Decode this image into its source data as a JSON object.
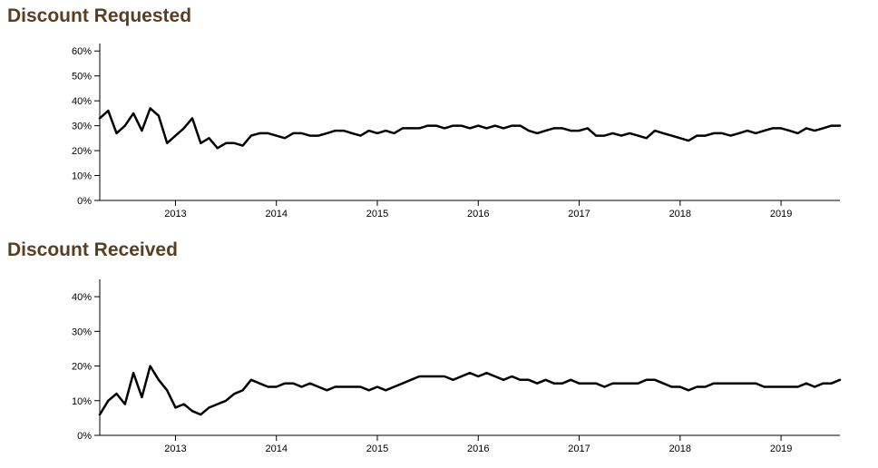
{
  "chart_data": [
    {
      "type": "line",
      "title": "Discount Requested",
      "xlabel": "",
      "ylabel": "",
      "x_ticks": [
        "2013",
        "2014",
        "2015",
        "2016",
        "2017",
        "2018",
        "2019"
      ],
      "y_ticks": [
        "0%",
        "10%",
        "20%",
        "30%",
        "40%",
        "50%",
        "60%"
      ],
      "xlim": [
        "2012-04",
        "2019-08"
      ],
      "ylim": [
        0,
        0.63
      ],
      "grid": false,
      "series": [
        {
          "x": [
            "2012-04",
            "2012-05",
            "2012-06",
            "2012-07",
            "2012-08",
            "2012-09",
            "2012-10",
            "2012-11",
            "2012-12",
            "2013-01",
            "2013-02",
            "2013-03",
            "2013-04",
            "2013-05",
            "2013-06",
            "2013-07",
            "2013-08",
            "2013-09",
            "2013-10",
            "2013-11",
            "2013-12",
            "2014-01",
            "2014-02",
            "2014-03",
            "2014-04",
            "2014-05",
            "2014-06",
            "2014-07",
            "2014-08",
            "2014-09",
            "2014-10",
            "2014-11",
            "2014-12",
            "2015-01",
            "2015-02",
            "2015-03",
            "2015-04",
            "2015-05",
            "2015-06",
            "2015-07",
            "2015-08",
            "2015-09",
            "2015-10",
            "2015-11",
            "2015-12",
            "2016-01",
            "2016-02",
            "2016-03",
            "2016-04",
            "2016-05",
            "2016-06",
            "2016-07",
            "2016-08",
            "2016-09",
            "2016-10",
            "2016-11",
            "2016-12",
            "2017-01",
            "2017-02",
            "2017-03",
            "2017-04",
            "2017-05",
            "2017-06",
            "2017-07",
            "2017-08",
            "2017-09",
            "2017-10",
            "2017-11",
            "2017-12",
            "2018-01",
            "2018-02",
            "2018-03",
            "2018-04",
            "2018-05",
            "2018-06",
            "2018-07",
            "2018-08",
            "2018-09",
            "2018-10",
            "2018-11",
            "2018-12",
            "2019-01",
            "2019-02",
            "2019-03",
            "2019-04",
            "2019-05",
            "2019-06",
            "2019-07",
            "2019-08"
          ],
          "values": [
            0.33,
            0.36,
            0.27,
            0.3,
            0.35,
            0.28,
            0.37,
            0.34,
            0.23,
            0.26,
            0.29,
            0.33,
            0.23,
            0.25,
            0.21,
            0.23,
            0.23,
            0.22,
            0.26,
            0.27,
            0.27,
            0.26,
            0.25,
            0.27,
            0.27,
            0.26,
            0.26,
            0.27,
            0.28,
            0.28,
            0.27,
            0.26,
            0.28,
            0.27,
            0.28,
            0.27,
            0.29,
            0.29,
            0.29,
            0.3,
            0.3,
            0.29,
            0.3,
            0.3,
            0.29,
            0.3,
            0.29,
            0.3,
            0.29,
            0.3,
            0.3,
            0.28,
            0.27,
            0.28,
            0.29,
            0.29,
            0.28,
            0.28,
            0.29,
            0.26,
            0.26,
            0.27,
            0.26,
            0.27,
            0.26,
            0.25,
            0.28,
            0.27,
            0.26,
            0.25,
            0.24,
            0.26,
            0.26,
            0.27,
            0.27,
            0.26,
            0.27,
            0.28,
            0.27,
            0.28,
            0.29,
            0.29,
            0.28,
            0.27,
            0.29,
            0.28,
            0.29,
            0.3,
            0.3
          ]
        }
      ]
    },
    {
      "type": "line",
      "title": "Discount Received",
      "xlabel": "",
      "ylabel": "",
      "x_ticks": [
        "2013",
        "2014",
        "2015",
        "2016",
        "2017",
        "2018",
        "2019"
      ],
      "y_ticks": [
        "0%",
        "10%",
        "20%",
        "30%",
        "40%"
      ],
      "xlim": [
        "2012-04",
        "2019-08"
      ],
      "ylim": [
        0,
        0.45
      ],
      "grid": false,
      "series": [
        {
          "x": [
            "2012-04",
            "2012-05",
            "2012-06",
            "2012-07",
            "2012-08",
            "2012-09",
            "2012-10",
            "2012-11",
            "2012-12",
            "2013-01",
            "2013-02",
            "2013-03",
            "2013-04",
            "2013-05",
            "2013-06",
            "2013-07",
            "2013-08",
            "2013-09",
            "2013-10",
            "2013-11",
            "2013-12",
            "2014-01",
            "2014-02",
            "2014-03",
            "2014-04",
            "2014-05",
            "2014-06",
            "2014-07",
            "2014-08",
            "2014-09",
            "2014-10",
            "2014-11",
            "2014-12",
            "2015-01",
            "2015-02",
            "2015-03",
            "2015-04",
            "2015-05",
            "2015-06",
            "2015-07",
            "2015-08",
            "2015-09",
            "2015-10",
            "2015-11",
            "2015-12",
            "2016-01",
            "2016-02",
            "2016-03",
            "2016-04",
            "2016-05",
            "2016-06",
            "2016-07",
            "2016-08",
            "2016-09",
            "2016-10",
            "2016-11",
            "2016-12",
            "2017-01",
            "2017-02",
            "2017-03",
            "2017-04",
            "2017-05",
            "2017-06",
            "2017-07",
            "2017-08",
            "2017-09",
            "2017-10",
            "2017-11",
            "2017-12",
            "2018-01",
            "2018-02",
            "2018-03",
            "2018-04",
            "2018-05",
            "2018-06",
            "2018-07",
            "2018-08",
            "2018-09",
            "2018-10",
            "2018-11",
            "2018-12",
            "2019-01",
            "2019-02",
            "2019-03",
            "2019-04",
            "2019-05",
            "2019-06",
            "2019-07",
            "2019-08"
          ],
          "values": [
            0.06,
            0.1,
            0.12,
            0.09,
            0.18,
            0.11,
            0.2,
            0.16,
            0.13,
            0.08,
            0.09,
            0.07,
            0.06,
            0.08,
            0.09,
            0.1,
            0.12,
            0.13,
            0.16,
            0.15,
            0.14,
            0.14,
            0.15,
            0.15,
            0.14,
            0.15,
            0.14,
            0.13,
            0.14,
            0.14,
            0.14,
            0.14,
            0.13,
            0.14,
            0.13,
            0.14,
            0.15,
            0.16,
            0.17,
            0.17,
            0.17,
            0.17,
            0.16,
            0.17,
            0.18,
            0.17,
            0.18,
            0.17,
            0.16,
            0.17,
            0.16,
            0.16,
            0.15,
            0.16,
            0.15,
            0.15,
            0.16,
            0.15,
            0.15,
            0.15,
            0.14,
            0.15,
            0.15,
            0.15,
            0.15,
            0.16,
            0.16,
            0.15,
            0.14,
            0.14,
            0.13,
            0.14,
            0.14,
            0.15,
            0.15,
            0.15,
            0.15,
            0.15,
            0.15,
            0.14,
            0.14,
            0.14,
            0.14,
            0.14,
            0.15,
            0.14,
            0.15,
            0.15,
            0.16
          ]
        }
      ]
    }
  ]
}
